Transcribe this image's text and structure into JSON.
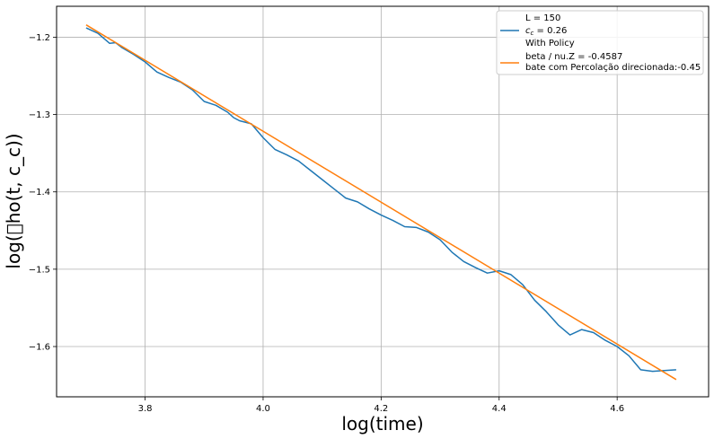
{
  "chart_data": {
    "type": "line",
    "xlabel": "log(time)",
    "ylabel": "log(\u0000ho(t, c_c))",
    "xlim": [
      3.65,
      4.755
    ],
    "ylim": [
      -1.665,
      -1.16
    ],
    "x_ticks": [
      3.8,
      4.0,
      4.2,
      4.4,
      4.6
    ],
    "x_tick_labels": [
      "3.8",
      "4.0",
      "4.2",
      "4.4",
      "4.6"
    ],
    "y_ticks": [
      -1.2,
      -1.3,
      -1.4,
      -1.5,
      -1.6
    ],
    "y_tick_labels": [
      "−1.2",
      "−1.3",
      "−1.4",
      "−1.5",
      "−1.6"
    ],
    "grid": true,
    "legend_position": "top-right",
    "legend": [
      {
        "text": "L = 150",
        "color": null
      },
      {
        "text": "c_c = 0.26",
        "color": "#1f77b4",
        "math": true
      },
      {
        "text": "With Policy",
        "color": null
      },
      {
        "text": "beta / nu.Z = -0.4587",
        "text2": "bate com Percolação direcionada:-0.45",
        "color": "#ff7f0e"
      }
    ],
    "series": [
      {
        "color": "#1f77b4",
        "x": [
          3.7,
          3.72,
          3.74,
          3.75,
          3.76,
          3.78,
          3.8,
          3.82,
          3.84,
          3.86,
          3.88,
          3.9,
          3.92,
          3.94,
          3.95,
          3.96,
          3.98,
          4.0,
          4.02,
          4.04,
          4.06,
          4.08,
          4.1,
          4.12,
          4.14,
          4.16,
          4.18,
          4.2,
          4.22,
          4.24,
          4.26,
          4.28,
          4.3,
          4.32,
          4.34,
          4.36,
          4.38,
          4.4,
          4.42,
          4.44,
          4.46,
          4.48,
          4.5,
          4.52,
          4.54,
          4.56,
          4.58,
          4.6,
          4.62,
          4.64,
          4.66,
          4.68,
          4.7
        ],
        "y": [
          -1.188,
          -1.195,
          -1.208,
          -1.207,
          -1.213,
          -1.222,
          -1.232,
          -1.245,
          -1.252,
          -1.258,
          -1.268,
          -1.283,
          -1.288,
          -1.297,
          -1.304,
          -1.308,
          -1.312,
          -1.33,
          -1.345,
          -1.352,
          -1.36,
          -1.372,
          -1.384,
          -1.396,
          -1.408,
          -1.413,
          -1.422,
          -1.43,
          -1.437,
          -1.445,
          -1.446,
          -1.452,
          -1.462,
          -1.478,
          -1.49,
          -1.498,
          -1.505,
          -1.502,
          -1.507,
          -1.52,
          -1.54,
          -1.555,
          -1.572,
          -1.585,
          -1.578,
          -1.582,
          -1.592,
          -1.6,
          -1.612,
          -1.63,
          -1.632,
          -1.631,
          -1.63
        ]
      },
      {
        "color": "#ff7f0e",
        "x": [
          3.7,
          4.7
        ],
        "y": [
          -1.184,
          -1.6427
        ]
      }
    ]
  }
}
